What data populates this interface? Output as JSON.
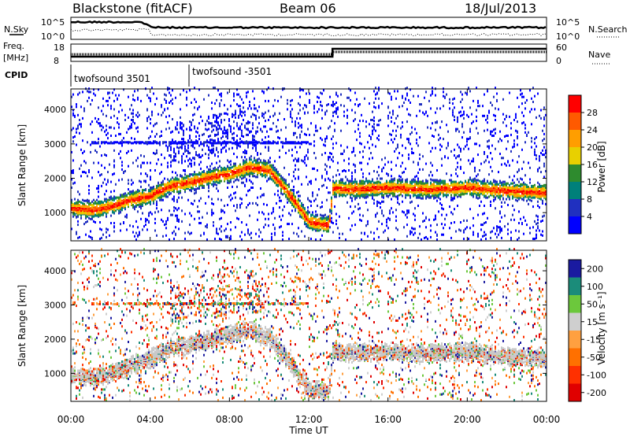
{
  "header": {
    "station": "Blackstone (fitACF)",
    "beam": "Beam 06",
    "date": "18/Jul/2013"
  },
  "top_panel": {
    "left_labels": [
      "N.Sky",
      "Freq.",
      "[MHz]",
      "CPID"
    ],
    "right_labels": [
      "N.Search",
      "Nave"
    ],
    "noise_ticks_left": [
      "10^5",
      "10^0"
    ],
    "noise_ticks_right": [
      "10^5",
      "10^0"
    ],
    "freq_ticks": [
      "18",
      "8"
    ],
    "nave_ticks": [
      "60",
      "0"
    ],
    "cpid_segments": [
      "twofsound 3501",
      "twofsound -3501"
    ]
  },
  "chart_data": [
    {
      "type": "heatmap",
      "panel": "power",
      "ylabel": "Slant Range [km]",
      "xlabel": "",
      "x_ticks": [
        "00:00",
        "04:00",
        "08:00",
        "12:00",
        "16:00",
        "20:00",
        "00:00"
      ],
      "y_ticks": [
        1000,
        2000,
        3000,
        4000
      ],
      "ylim": [
        180,
        4600
      ],
      "colorbar": {
        "label": "Power [dB]",
        "ticks": [
          "28",
          "24",
          "20",
          "16",
          "12",
          "8",
          "4"
        ],
        "colors": [
          "#ff0000",
          "#ff5a00",
          "#ff9e00",
          "#e8d000",
          "#2e8b2e",
          "#00807a",
          "#2030c0",
          "#0000ff"
        ]
      },
      "main_band_km_by_hour": [
        [
          0,
          1100
        ],
        [
          1,
          1050
        ],
        [
          2,
          1150
        ],
        [
          3,
          1350
        ],
        [
          4,
          1450
        ],
        [
          5,
          1750
        ],
        [
          6,
          1850
        ],
        [
          7,
          2000
        ],
        [
          8,
          2100
        ],
        [
          9,
          2300
        ],
        [
          10,
          2200
        ],
        [
          11,
          1500
        ],
        [
          12,
          700
        ],
        [
          13,
          600
        ],
        [
          13.2,
          1700
        ],
        [
          14,
          1650
        ],
        [
          16,
          1700
        ],
        [
          18,
          1650
        ],
        [
          20,
          1700
        ],
        [
          22,
          1600
        ],
        [
          24,
          1550
        ]
      ]
    },
    {
      "type": "heatmap",
      "panel": "velocity",
      "ylabel": "Slant Range [km]",
      "xlabel": "Time UT",
      "x_ticks": [
        "00:00",
        "04:00",
        "08:00",
        "12:00",
        "16:00",
        "20:00",
        "00:00"
      ],
      "y_ticks": [
        1000,
        2000,
        3000,
        4000
      ],
      "ylim": [
        180,
        4600
      ],
      "colorbar": {
        "label": "Velocity [m s⁻¹]",
        "ticks": [
          "200",
          "100",
          "50",
          "15",
          "-15",
          "-50",
          "-100",
          "-200"
        ],
        "colors": [
          "#1a1aa0",
          "#1b8c7a",
          "#6cc83c",
          "#cfcfcf",
          "#ffa040",
          "#ff7000",
          "#ff3000",
          "#e00000"
        ]
      },
      "main_band_km_by_hour": [
        [
          0,
          900
        ],
        [
          1,
          850
        ],
        [
          2,
          950
        ],
        [
          3,
          1200
        ],
        [
          4,
          1400
        ],
        [
          5,
          1700
        ],
        [
          6,
          1800
        ],
        [
          7,
          1950
        ],
        [
          8,
          2100
        ],
        [
          9,
          2200
        ],
        [
          10,
          2000
        ],
        [
          11,
          1300
        ],
        [
          12,
          500
        ],
        [
          13,
          450
        ],
        [
          13.2,
          1600
        ],
        [
          14,
          1550
        ],
        [
          16,
          1600
        ],
        [
          18,
          1550
        ],
        [
          20,
          1600
        ],
        [
          22,
          1450
        ],
        [
          24,
          1400
        ]
      ]
    }
  ]
}
